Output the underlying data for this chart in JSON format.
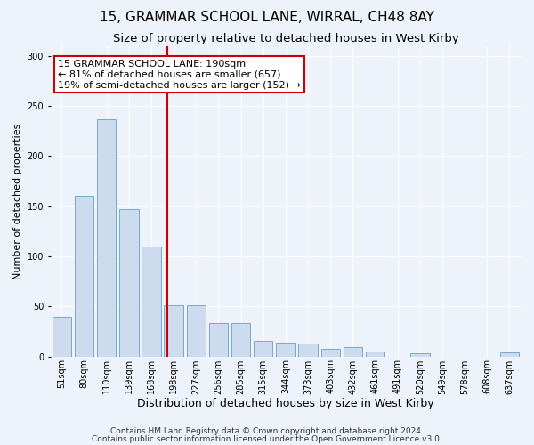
{
  "title": "15, GRAMMAR SCHOOL LANE, WIRRAL, CH48 8AY",
  "subtitle": "Size of property relative to detached houses in West Kirby",
  "xlabel": "Distribution of detached houses by size in West Kirby",
  "ylabel": "Number of detached properties",
  "footer1": "Contains HM Land Registry data © Crown copyright and database right 2024.",
  "footer2": "Contains public sector information licensed under the Open Government Licence v3.0.",
  "categories": [
    "51sqm",
    "80sqm",
    "110sqm",
    "139sqm",
    "168sqm",
    "198sqm",
    "227sqm",
    "256sqm",
    "285sqm",
    "315sqm",
    "344sqm",
    "373sqm",
    "403sqm",
    "432sqm",
    "461sqm",
    "491sqm",
    "520sqm",
    "549sqm",
    "578sqm",
    "608sqm",
    "637sqm"
  ],
  "values": [
    40,
    160,
    237,
    147,
    110,
    51,
    51,
    33,
    33,
    16,
    14,
    13,
    8,
    9,
    5,
    0,
    3,
    0,
    0,
    0,
    4
  ],
  "bar_color": "#ccdcee",
  "bar_edge_color": "#7aa8cc",
  "property_size_label": "15 GRAMMAR SCHOOL LANE: 190sqm",
  "annotation_line1": "← 81% of detached houses are smaller (657)",
  "annotation_line2": "19% of semi-detached houses are larger (152) →",
  "vline_color": "#cc0000",
  "vline_position": 4.72,
  "annotation_box_color": "#ffffff",
  "annotation_box_edge": "#cc0000",
  "ylim": [
    0,
    310
  ],
  "background_color": "#eef2fb",
  "plot_background": "#eef2fb",
  "grid_color": "#ffffff",
  "title_fontsize": 11,
  "subtitle_fontsize": 9.5,
  "ylabel_fontsize": 8,
  "xlabel_fontsize": 9,
  "tick_fontsize": 7,
  "footer_fontsize": 6.5,
  "annotation_fontsize": 8
}
